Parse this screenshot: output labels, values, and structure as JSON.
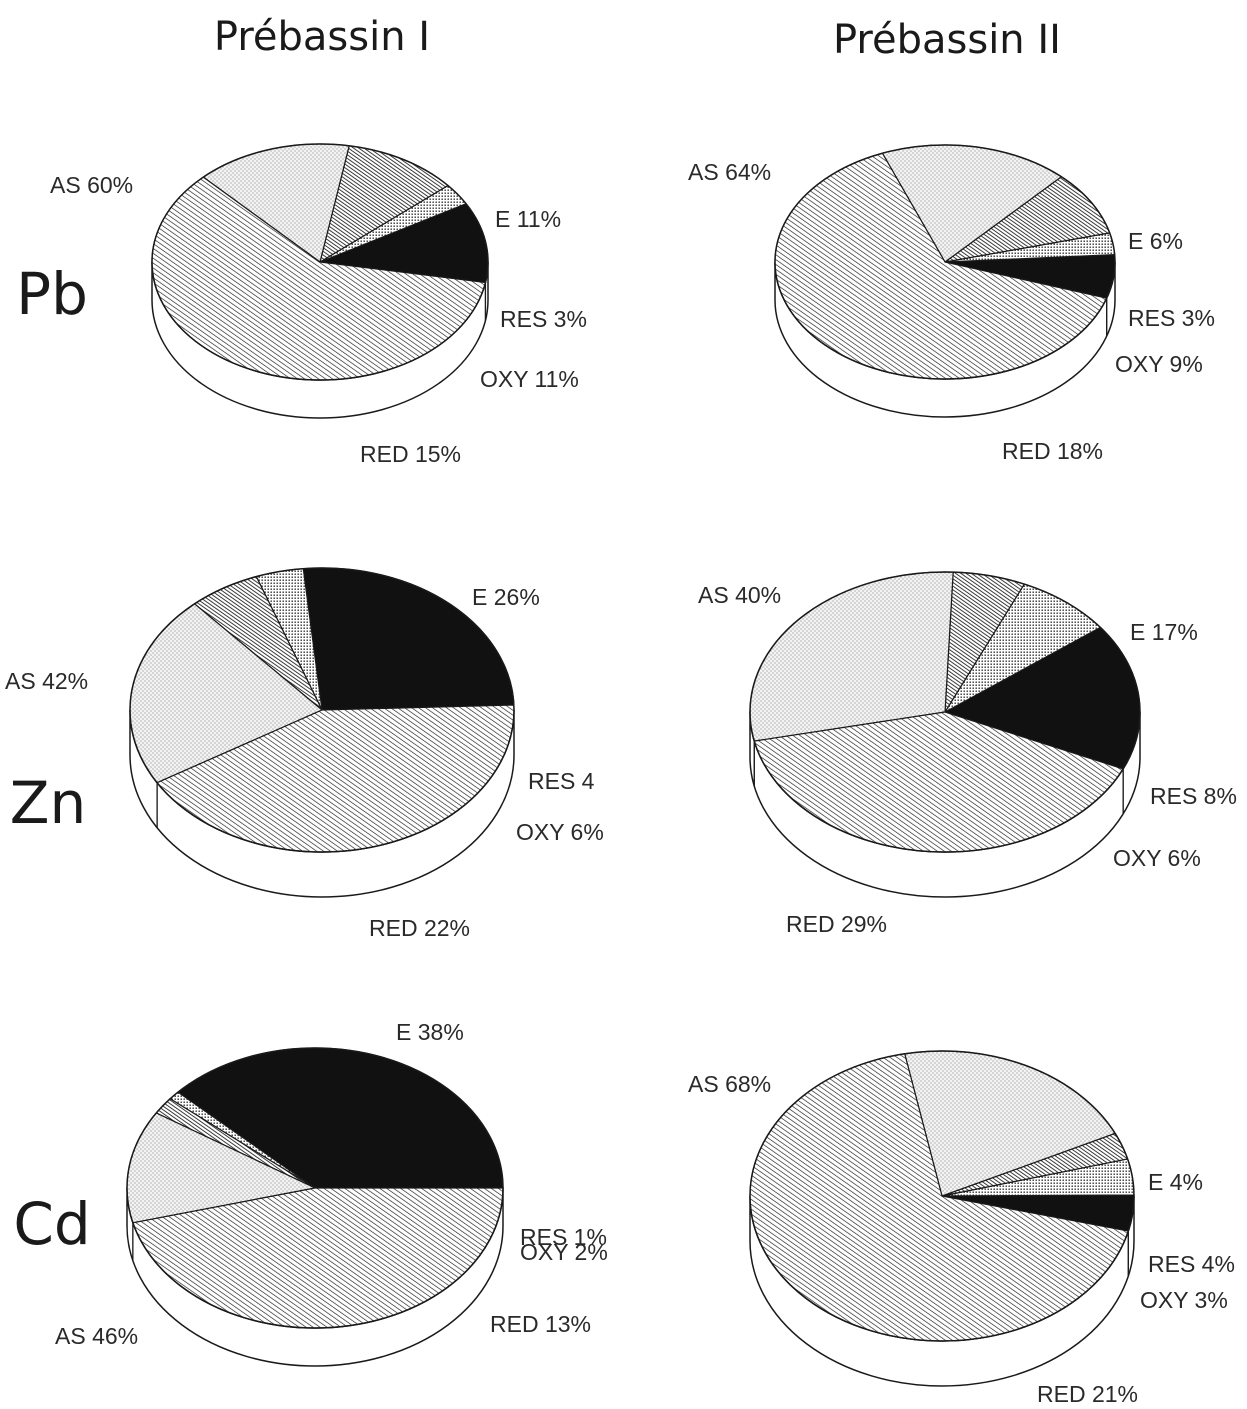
{
  "column_titles": [
    "Prébassin I",
    "Prébassin II"
  ],
  "row_labels": [
    "Pb",
    "Zn",
    "Cd"
  ],
  "colors": {
    "ink": "#1a1a1a",
    "dark_fill": "#111111",
    "side_fill": "#ffffff"
  },
  "chart_data": [
    {
      "type": "pie",
      "element": "Pb",
      "basin": "Prébassin I",
      "slices": [
        {
          "name": "E",
          "value": 11,
          "label": "E 11%",
          "pattern": "solid"
        },
        {
          "name": "RES",
          "value": 3,
          "label": "RES 3%",
          "pattern": "dense-dots"
        },
        {
          "name": "OXY",
          "value": 11,
          "label": "OXY 11%",
          "pattern": "dense-hatch"
        },
        {
          "name": "RED",
          "value": 15,
          "label": "RED 15%",
          "pattern": "light-dots"
        },
        {
          "name": "AS",
          "value": 60,
          "label": "AS 60%",
          "pattern": "hatch"
        }
      ]
    },
    {
      "type": "pie",
      "element": "Pb",
      "basin": "Prébassin II",
      "slices": [
        {
          "name": "E",
          "value": 6,
          "label": "E 6%",
          "pattern": "solid"
        },
        {
          "name": "RES",
          "value": 3,
          "label": "RES 3%",
          "pattern": "dense-dots"
        },
        {
          "name": "OXY",
          "value": 9,
          "label": "OXY 9%",
          "pattern": "dense-hatch"
        },
        {
          "name": "RED",
          "value": 18,
          "label": "RED 18%",
          "pattern": "light-dots"
        },
        {
          "name": "AS",
          "value": 64,
          "label": "AS 64%",
          "pattern": "hatch"
        }
      ]
    },
    {
      "type": "pie",
      "element": "Zn",
      "basin": "Prébassin I",
      "slices": [
        {
          "name": "E",
          "value": 26,
          "label": "E 26%",
          "pattern": "solid"
        },
        {
          "name": "RES",
          "value": 4,
          "label": "RES 4",
          "pattern": "dense-dots"
        },
        {
          "name": "OXY",
          "value": 6,
          "label": "OXY 6%",
          "pattern": "dense-hatch"
        },
        {
          "name": "RED",
          "value": 22,
          "label": "RED 22%",
          "pattern": "light-dots"
        },
        {
          "name": "AS",
          "value": 42,
          "label": "AS 42%",
          "pattern": "hatch"
        }
      ]
    },
    {
      "type": "pie",
      "element": "Zn",
      "basin": "Prébassin II",
      "slices": [
        {
          "name": "E",
          "value": 17,
          "label": "E 17%",
          "pattern": "solid"
        },
        {
          "name": "RES",
          "value": 8,
          "label": "RES 8%",
          "pattern": "dense-dots"
        },
        {
          "name": "OXY",
          "value": 6,
          "label": "OXY 6%",
          "pattern": "dense-hatch"
        },
        {
          "name": "RED",
          "value": 29,
          "label": "RED 29%",
          "pattern": "light-dots"
        },
        {
          "name": "AS",
          "value": 40,
          "label": "AS 40%",
          "pattern": "hatch"
        }
      ]
    },
    {
      "type": "pie",
      "element": "Cd",
      "basin": "Prébassin I",
      "slices": [
        {
          "name": "E",
          "value": 38,
          "label": "E 38%",
          "pattern": "solid"
        },
        {
          "name": "RES",
          "value": 1,
          "label": "RES 1%",
          "pattern": "dense-dots"
        },
        {
          "name": "OXY",
          "value": 2,
          "label": "OXY 2%",
          "pattern": "dense-hatch"
        },
        {
          "name": "RED",
          "value": 13,
          "label": "RED 13%",
          "pattern": "light-dots"
        },
        {
          "name": "AS",
          "value": 46,
          "label": "AS 46%",
          "pattern": "hatch"
        }
      ]
    },
    {
      "type": "pie",
      "element": "Cd",
      "basin": "Prébassin II",
      "slices": [
        {
          "name": "E",
          "value": 4,
          "label": "E 4%",
          "pattern": "solid"
        },
        {
          "name": "RES",
          "value": 4,
          "label": "RES 4%",
          "pattern": "dense-dots"
        },
        {
          "name": "OXY",
          "value": 3,
          "label": "OXY 3%",
          "pattern": "dense-hatch"
        },
        {
          "name": "RED",
          "value": 21,
          "label": "RED 21%",
          "pattern": "light-dots"
        },
        {
          "name": "AS",
          "value": 68,
          "label": "AS 68%",
          "pattern": "hatch"
        }
      ]
    }
  ]
}
